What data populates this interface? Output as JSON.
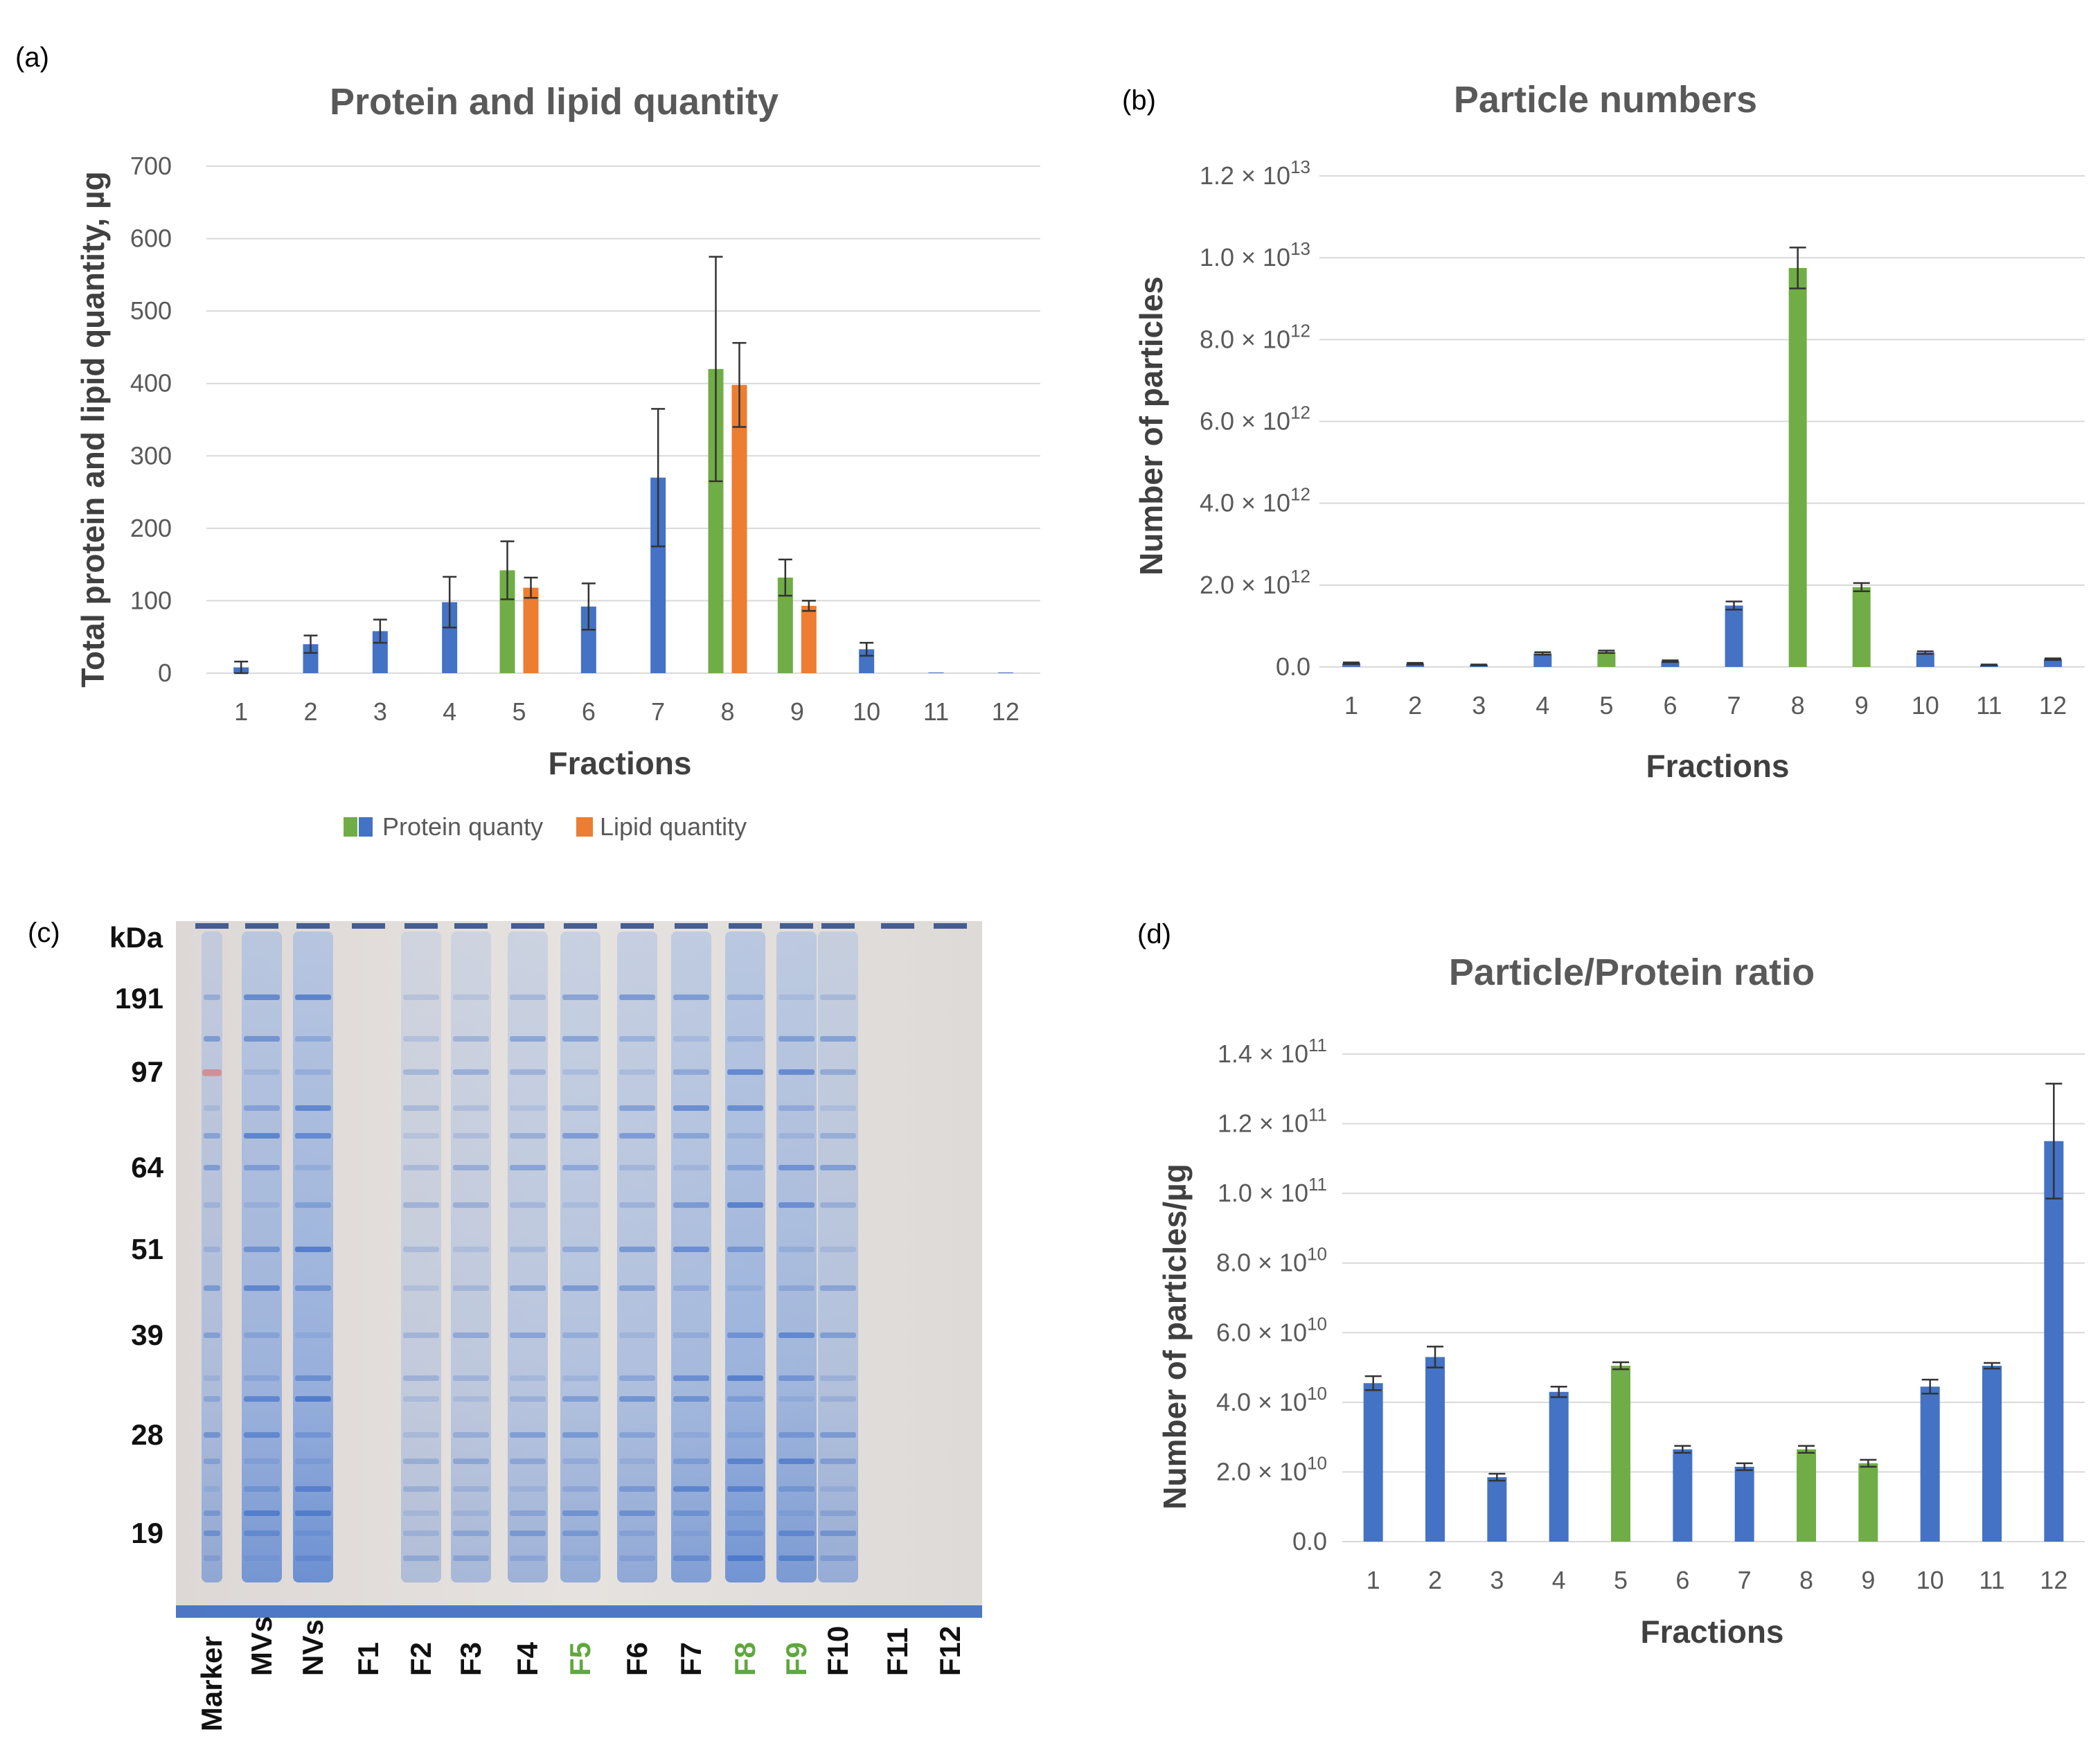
{
  "colors": {
    "blue": "#4472c4",
    "green": "#70ad47",
    "orange": "#ed7d31",
    "gel_bg": "#e4dfdc",
    "gel_band": "#3f6fc7",
    "lane_black": "#111111",
    "lane_green": "#5fa83d"
  },
  "chart_data": [
    {
      "id": "a",
      "panel_label": "(a)",
      "type": "bar",
      "title": "Protein and lipid quantity",
      "xlabel": "Fractions",
      "ylabel": "Total protein and lipid quantity, µg",
      "ylim": [
        0,
        700
      ],
      "yticks": [
        "0",
        "100",
        "200",
        "300",
        "400",
        "500",
        "600",
        "700"
      ],
      "categories": [
        "1",
        "2",
        "3",
        "4",
        "5",
        "6",
        "7",
        "8",
        "9",
        "10",
        "11",
        "12"
      ],
      "series": [
        {
          "name": "Protein quanty",
          "values": [
            8,
            40,
            58,
            98,
            142,
            92,
            270,
            420,
            132,
            33,
            1,
            1
          ],
          "errors": [
            8,
            12,
            16,
            35,
            40,
            32,
            95,
            155,
            25,
            9,
            0,
            0
          ],
          "colors": [
            "blue",
            "blue",
            "blue",
            "blue",
            "green",
            "blue",
            "blue",
            "green",
            "green",
            "blue",
            "blue",
            "blue"
          ]
        },
        {
          "name": "Lipid quantity",
          "values": [
            null,
            null,
            null,
            null,
            118,
            null,
            null,
            398,
            93,
            null,
            null,
            null
          ],
          "errors": [
            null,
            null,
            null,
            null,
            14,
            null,
            null,
            58,
            7,
            null,
            null,
            null
          ],
          "color": "orange"
        }
      ],
      "legend": [
        {
          "label": "Protein quanty"
        },
        {
          "label": "Lipid quantity"
        }
      ]
    },
    {
      "id": "b",
      "panel_label": "(b)",
      "type": "bar",
      "title": "Particle numbers",
      "xlabel": "Fractions",
      "ylabel": "Number of particles",
      "ylim": [
        0,
        12000000000000.0
      ],
      "yticks": [
        {
          "m": "0.0",
          "e": ""
        },
        {
          "m": "2.0 × 10",
          "e": "12"
        },
        {
          "m": "4.0 × 10",
          "e": "12"
        },
        {
          "m": "6.0 × 10",
          "e": "12"
        },
        {
          "m": "8.0 × 10",
          "e": "12"
        },
        {
          "m": "1.0 × 10",
          "e": "13"
        },
        {
          "m": "1.2 × 10",
          "e": "13"
        }
      ],
      "categories": [
        "1",
        "2",
        "3",
        "4",
        "5",
        "6",
        "7",
        "8",
        "9",
        "10",
        "11",
        "12"
      ],
      "values": [
        90000000000.0,
        80000000000.0,
        50000000000.0,
        330000000000.0,
        370000000000.0,
        140000000000.0,
        1500000000000.0,
        9750000000000.0,
        1950000000000.0,
        350000000000.0,
        50000000000.0,
        190000000000.0
      ],
      "errors": [
        20000000000.0,
        20000000000.0,
        10000000000.0,
        30000000000.0,
        30000000000.0,
        20000000000.0,
        100000000000.0,
        500000000000.0,
        100000000000.0,
        30000000000.0,
        10000000000.0,
        20000000000.0
      ],
      "colors": [
        "blue",
        "blue",
        "blue",
        "blue",
        "green",
        "blue",
        "blue",
        "green",
        "green",
        "blue",
        "blue",
        "blue"
      ]
    },
    {
      "id": "d",
      "panel_label": "(d)",
      "type": "bar",
      "title": "Particle/Protein ratio",
      "xlabel": "Fractions",
      "ylabel": "Number of particles/µg",
      "ylim": [
        0,
        140000000000.0
      ],
      "yticks": [
        {
          "m": "0.0",
          "e": ""
        },
        {
          "m": "2.0 × 10",
          "e": "10"
        },
        {
          "m": "4.0 × 10",
          "e": "10"
        },
        {
          "m": "6.0 × 10",
          "e": "10"
        },
        {
          "m": "8.0 × 10",
          "e": "10"
        },
        {
          "m": "1.0 × 10",
          "e": "11"
        },
        {
          "m": "1.2 × 10",
          "e": "11"
        },
        {
          "m": "1.4 × 10",
          "e": "11"
        }
      ],
      "categories": [
        "1",
        "2",
        "3",
        "4",
        "5",
        "6",
        "7",
        "8",
        "9",
        "10",
        "11",
        "12"
      ],
      "values": [
        45500000000.0,
        53000000000.0,
        18500000000.0,
        43000000000.0,
        50500000000.0,
        26500000000.0,
        21500000000.0,
        26500000000.0,
        22500000000.0,
        44500000000.0,
        50500000000.0,
        115000000000.0
      ],
      "errors": [
        2000000000.0,
        3000000000.0,
        1000000000.0,
        1500000000.0,
        1000000000.0,
        1000000000.0,
        1000000000.0,
        1000000000.0,
        1000000000.0,
        2000000000.0,
        800000000.0,
        16500000000.0
      ],
      "colors": [
        "blue",
        "blue",
        "blue",
        "blue",
        "green",
        "blue",
        "blue",
        "green",
        "green",
        "blue",
        "blue",
        "blue"
      ]
    }
  ],
  "gel": {
    "panel_label": "(c)",
    "unit": "kDa",
    "markers": [
      "191",
      "97",
      "64",
      "51",
      "39",
      "28",
      "19"
    ],
    "lanes": [
      {
        "label": "Marker",
        "color": "lane_black",
        "intensity": 0.5
      },
      {
        "label": "MVs",
        "color": "lane_black",
        "intensity": 0.8
      },
      {
        "label": "NVs",
        "color": "lane_black",
        "intensity": 0.9
      },
      {
        "label": "F1",
        "color": "lane_black",
        "intensity": 0.0
      },
      {
        "label": "F2",
        "color": "lane_black",
        "intensity": 0.2
      },
      {
        "label": "F3",
        "color": "lane_black",
        "intensity": 0.3
      },
      {
        "label": "F4",
        "color": "lane_black",
        "intensity": 0.4
      },
      {
        "label": "F5",
        "color": "lane_green",
        "intensity": 0.5
      },
      {
        "label": "F6",
        "color": "lane_black",
        "intensity": 0.55
      },
      {
        "label": "F7",
        "color": "lane_black",
        "intensity": 0.7
      },
      {
        "label": "F8",
        "color": "lane_green",
        "intensity": 0.85
      },
      {
        "label": "F9",
        "color": "lane_green",
        "intensity": 0.75
      },
      {
        "label": "F10",
        "color": "lane_black",
        "intensity": 0.45
      },
      {
        "label": "F11",
        "color": "lane_black",
        "intensity": 0.0
      },
      {
        "label": "F12",
        "color": "lane_black",
        "intensity": 0.0
      }
    ]
  }
}
